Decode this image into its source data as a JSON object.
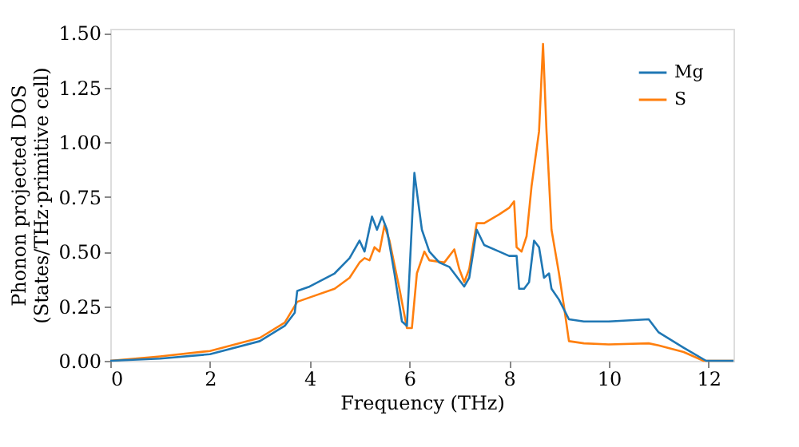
{
  "chart_data": {
    "type": "line",
    "xlabel": "Frequency (THz)",
    "ylabel": "Phonon projected DOS\n(States/THz·primitive cell)",
    "xlim": [
      0,
      12.5
    ],
    "ylim": [
      0,
      1.52
    ],
    "xticks": [
      0,
      2,
      4,
      6,
      8,
      10,
      12
    ],
    "yticks": [
      {
        "value": 0,
        "label": "0.00"
      },
      {
        "value": 0.25,
        "label": "0.25"
      },
      {
        "value": 0.5,
        "label": "0.50"
      },
      {
        "value": 0.75,
        "label": "0.75"
      },
      {
        "value": 1,
        "label": "1.00"
      },
      {
        "value": 1.25,
        "label": "1.25"
      },
      {
        "value": 1.5,
        "label": "1.50"
      }
    ],
    "grid": false,
    "legend": "top right",
    "line_style": "solid",
    "marker": "none",
    "series": [
      {
        "name": "Mg",
        "color": "#1f77b4",
        "x": [
          0,
          1,
          2,
          3,
          3.5,
          3.7,
          3.75,
          4,
          4.5,
          4.8,
          5.0,
          5.1,
          5.25,
          5.35,
          5.45,
          5.55,
          5.7,
          5.85,
          5.95,
          6.1,
          6.25,
          6.4,
          6.6,
          6.8,
          7.0,
          7.1,
          7.2,
          7.35,
          7.5,
          7.8,
          8.0,
          8.15,
          8.2,
          8.3,
          8.4,
          8.5,
          8.6,
          8.7,
          8.8,
          8.85,
          9.0,
          9.2,
          9.5,
          10,
          10.8,
          11.0,
          11.5,
          11.95,
          12.5
        ],
        "values": [
          0,
          0.01,
          0.03,
          0.09,
          0.16,
          0.22,
          0.32,
          0.34,
          0.4,
          0.47,
          0.55,
          0.5,
          0.66,
          0.6,
          0.66,
          0.6,
          0.4,
          0.18,
          0.16,
          0.86,
          0.6,
          0.5,
          0.45,
          0.43,
          0.37,
          0.34,
          0.38,
          0.6,
          0.53,
          0.5,
          0.48,
          0.48,
          0.33,
          0.33,
          0.36,
          0.55,
          0.52,
          0.38,
          0.4,
          0.33,
          0.28,
          0.19,
          0.18,
          0.18,
          0.19,
          0.13,
          0.06,
          0,
          0
        ]
      },
      {
        "name": "S",
        "color": "#ff7f0e",
        "x": [
          0,
          1,
          2,
          3,
          3.5,
          3.75,
          4,
          4.5,
          4.8,
          5.0,
          5.1,
          5.2,
          5.3,
          5.4,
          5.5,
          5.6,
          5.8,
          5.95,
          6.05,
          6.15,
          6.3,
          6.4,
          6.7,
          6.9,
          7.0,
          7.1,
          7.2,
          7.35,
          7.5,
          7.8,
          8.0,
          8.1,
          8.15,
          8.25,
          8.35,
          8.45,
          8.6,
          8.68,
          8.75,
          8.85,
          9.0,
          9.1,
          9.2,
          9.5,
          10,
          10.8,
          11.0,
          11.5,
          11.9,
          12.5
        ],
        "values": [
          0,
          0.02,
          0.045,
          0.105,
          0.175,
          0.27,
          0.29,
          0.33,
          0.38,
          0.45,
          0.47,
          0.46,
          0.52,
          0.5,
          0.62,
          0.55,
          0.33,
          0.15,
          0.15,
          0.4,
          0.5,
          0.46,
          0.45,
          0.51,
          0.42,
          0.36,
          0.42,
          0.63,
          0.63,
          0.67,
          0.7,
          0.73,
          0.52,
          0.5,
          0.57,
          0.8,
          1.05,
          1.45,
          1.05,
          0.6,
          0.4,
          0.25,
          0.09,
          0.08,
          0.075,
          0.08,
          0.07,
          0.04,
          0,
          0
        ]
      }
    ]
  }
}
